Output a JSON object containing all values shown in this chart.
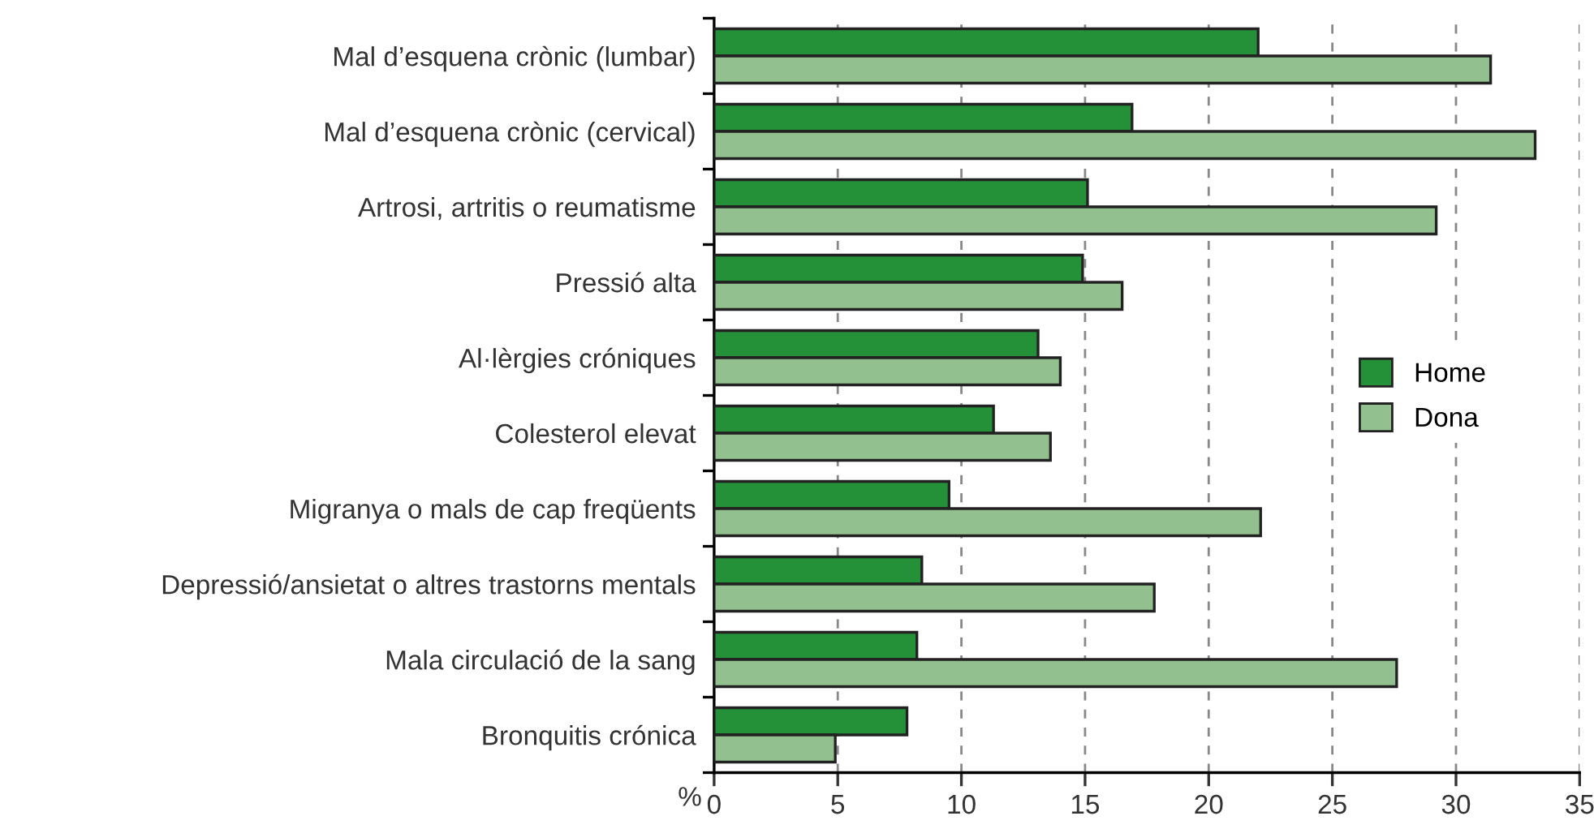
{
  "chart_data": {
    "type": "bar",
    "orientation": "horizontal",
    "xlabel": "%",
    "categories": [
      "Mal d’esquena crònic (lumbar)",
      "Mal d’esquena crònic (cervical)",
      "Artrosi, artritis o reumatisme",
      "Pressió alta",
      "Al·lèrgies cróniques",
      "Colesterol elevat",
      "Migranya o mals de cap freqüents",
      "Depressió/ansietat o altres trastorns mentals",
      "Mala circulació de la sang",
      "Bronquitis crónica"
    ],
    "series": [
      {
        "name": "Home",
        "color": "#249139",
        "values": [
          22.0,
          16.9,
          15.1,
          14.9,
          13.1,
          11.3,
          9.5,
          8.4,
          8.2,
          7.8
        ]
      },
      {
        "name": "Dona",
        "color": "#92c08e",
        "values": [
          31.4,
          33.2,
          29.2,
          16.5,
          14.0,
          13.6,
          22.1,
          17.8,
          27.6,
          4.9
        ]
      }
    ],
    "xlim": [
      0,
      35
    ],
    "xticks": [
      0,
      5,
      10,
      15,
      20,
      25,
      30,
      35
    ],
    "grid": "x",
    "legend": "right"
  }
}
